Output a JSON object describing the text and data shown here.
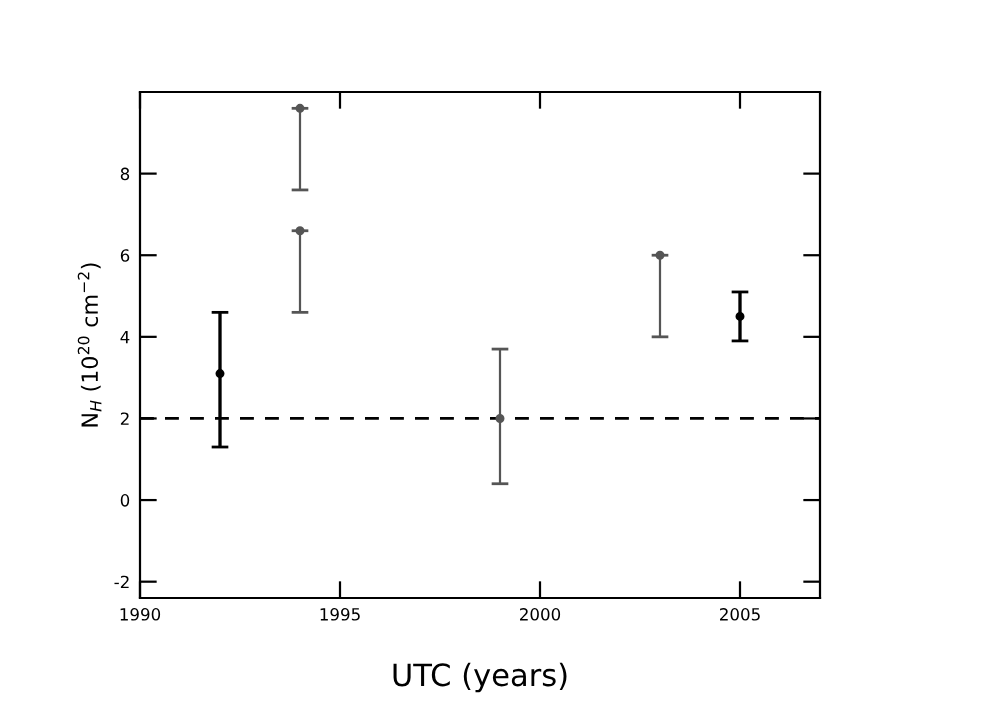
{
  "chart_data": {
    "type": "scatter",
    "xlabel": "UTC (years)",
    "ylabel": "N$_{H}$ (10$^{20}$ cm$^{−2}$)",
    "x": [
      1992,
      1994,
      1994,
      1999,
      2003,
      2005
    ],
    "values": [
      3.1,
      9.6,
      6.6,
      2.0,
      6.0,
      4.5
    ],
    "errors": [
      [
        1.3,
        4.6
      ],
      [
        7.6,
        9.6
      ],
      [
        4.6,
        6.6
      ],
      [
        0.4,
        3.7
      ],
      [
        4.0,
        6.0
      ],
      [
        3.9,
        5.1
      ]
    ],
    "colors": [
      "#000000",
      "#555555",
      "#555555",
      "#555555",
      "#555555",
      "#000000"
    ],
    "marker": "circle",
    "xlim": [
      1990,
      2007
    ],
    "xticks": [
      1990,
      1995,
      2000,
      2005
    ],
    "ylim": [
      -2.4,
      10
    ],
    "yticks": [
      -2,
      0,
      2,
      4,
      6,
      8
    ],
    "ref_lines": [
      {
        "axis": "y",
        "value": 2,
        "color": "#000000",
        "line_style": "dashed"
      }
    ],
    "grid": false,
    "legend": false
  }
}
